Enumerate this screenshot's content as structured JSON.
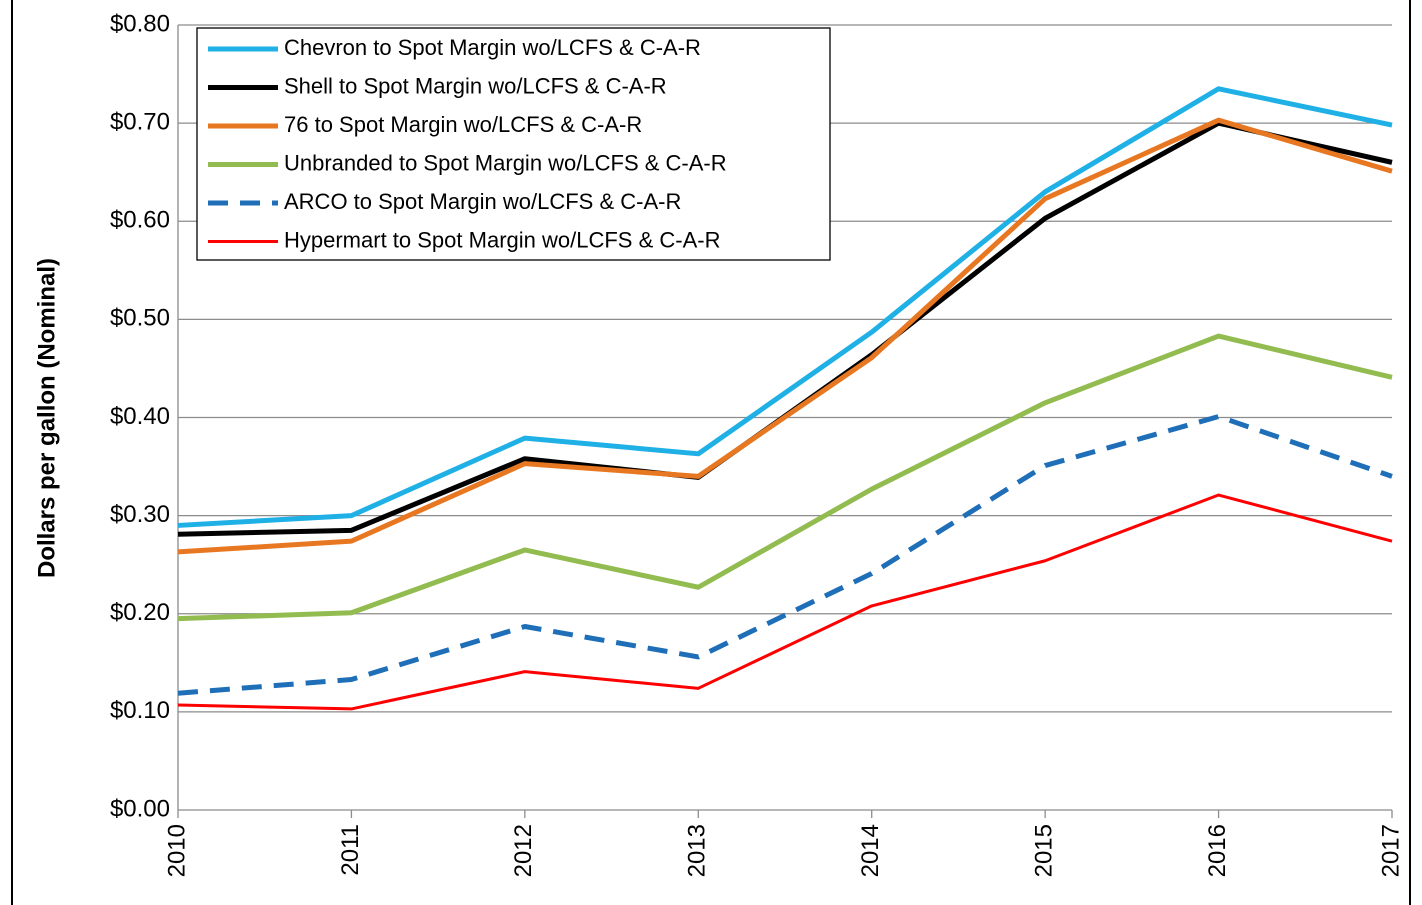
{
  "chart_data": {
    "type": "line",
    "y_label": "Dollars per gallon (Nominal)",
    "categories": [
      "2010",
      "2011",
      "2012",
      "2013",
      "2014",
      "2015",
      "2016",
      "2017"
    ],
    "ylim": [
      0,
      0.8
    ],
    "yticks": [
      {
        "value": 0,
        "label": "$0.00"
      },
      {
        "value": 0.1,
        "label": "$0.10"
      },
      {
        "value": 0.2,
        "label": "$0.20"
      },
      {
        "value": 0.3,
        "label": "$0.30"
      },
      {
        "value": 0.4,
        "label": "$0.40"
      },
      {
        "value": 0.5,
        "label": "$0.50"
      },
      {
        "value": 0.6,
        "label": "$0.60"
      },
      {
        "value": 0.7,
        "label": "$0.70"
      },
      {
        "value": 0.8,
        "label": "$0.80"
      }
    ],
    "grid": true,
    "legend": "upper left",
    "series": [
      {
        "name": "Chevron to Spot Margin wo/LCFS & C-A-R",
        "color": "#1fb0e6",
        "width": 5,
        "values": [
          0.29,
          0.3,
          0.379,
          0.363,
          0.487,
          0.63,
          0.735,
          0.698
        ]
      },
      {
        "name": "Shell to Spot Margin wo/LCFS & C-A-R",
        "color": "#000000",
        "width": 5,
        "values": [
          0.281,
          0.285,
          0.358,
          0.339,
          0.464,
          0.603,
          0.7,
          0.66
        ]
      },
      {
        "name": "76 to Spot Margin wo/LCFS & C-A-R",
        "color": "#e87722",
        "width": 5,
        "values": [
          0.263,
          0.274,
          0.353,
          0.34,
          0.461,
          0.623,
          0.703,
          0.651
        ]
      },
      {
        "name": "Unbranded to Spot Margin wo/LCFS & C-A-R",
        "color": "#92bc50",
        "width": 5,
        "values": [
          0.195,
          0.201,
          0.265,
          0.227,
          0.327,
          0.415,
          0.483,
          0.441
        ]
      },
      {
        "name": "ARCO to Spot Margin wo/LCFS & C-A-R",
        "color": "#1f6fb8",
        "width": 5,
        "dashed": true,
        "values": [
          0.119,
          0.133,
          0.187,
          0.156,
          0.241,
          0.351,
          0.401,
          0.34
        ]
      },
      {
        "name": "Hypermart to Spot Margin wo/LCFS & C-A-R",
        "color": "#ff0000",
        "width": 3,
        "values": [
          0.107,
          0.103,
          0.141,
          0.124,
          0.208,
          0.254,
          0.321,
          0.274
        ]
      }
    ]
  }
}
